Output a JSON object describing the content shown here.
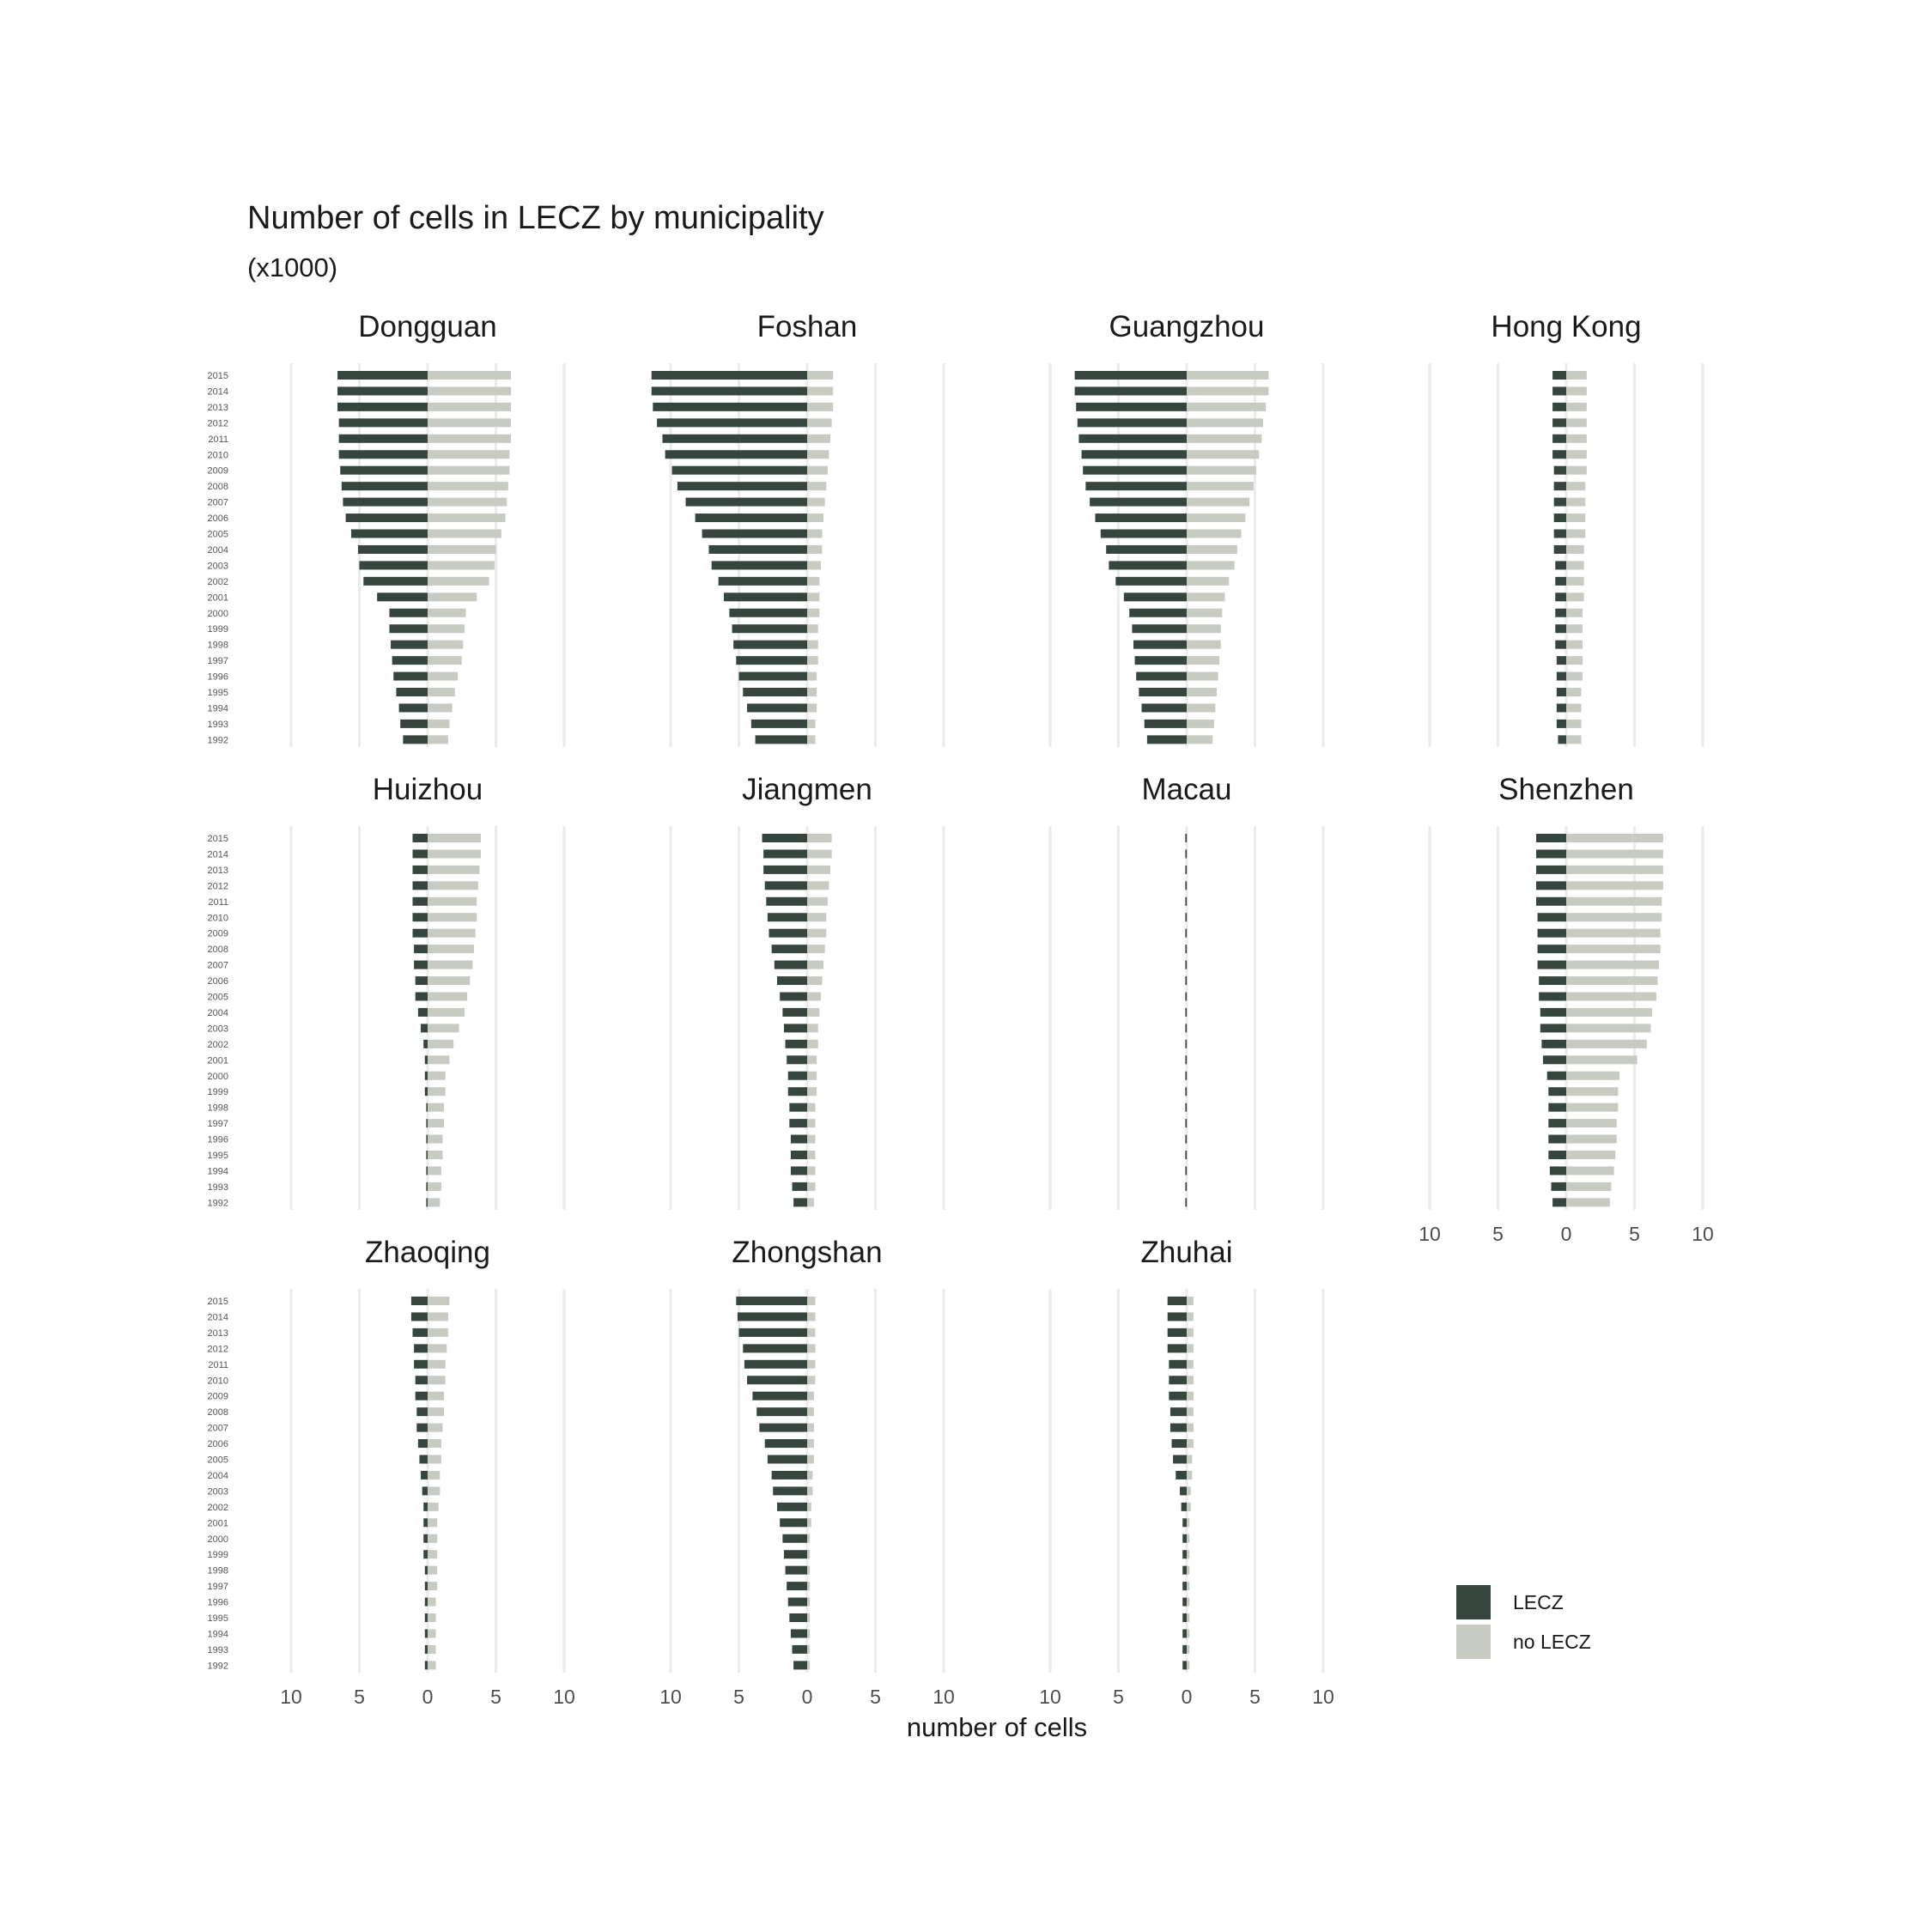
{
  "chart_data": {
    "type": "bar",
    "title": "Number of cells in LECZ by municipality",
    "subtitle": "(x1000)",
    "xlabel": "number of cells",
    "xlim": [
      -10,
      10
    ],
    "x_ticks": [
      -10,
      -5,
      0,
      5,
      10
    ],
    "x_tick_labels": [
      "10",
      "5",
      "0",
      "5",
      "10"
    ],
    "grid": "vertical",
    "legend_position": "bottom-right",
    "colors": {
      "LECZ": "#36463f",
      "no LECZ": "#c7cbc2",
      "grid": "#ebebeb"
    },
    "years": [
      2015,
      2014,
      2013,
      2012,
      2011,
      2010,
      2009,
      2008,
      2007,
      2006,
      2005,
      2004,
      2003,
      2002,
      2001,
      2000,
      1999,
      1998,
      1997,
      1996,
      1995,
      1994,
      1993,
      1992
    ],
    "series": [
      {
        "name": "LECZ"
      },
      {
        "name": "no LECZ"
      }
    ],
    "panels": [
      {
        "name": "Dongguan",
        "LECZ": [
          6.6,
          6.6,
          6.6,
          6.5,
          6.5,
          6.5,
          6.4,
          6.3,
          6.2,
          6.0,
          5.6,
          5.1,
          5.0,
          4.7,
          3.7,
          2.8,
          2.8,
          2.7,
          2.6,
          2.5,
          2.3,
          2.1,
          2.0,
          1.8
        ],
        "no_LECZ": [
          6.1,
          6.1,
          6.1,
          6.1,
          6.1,
          6.0,
          6.0,
          5.9,
          5.8,
          5.7,
          5.4,
          5.0,
          4.9,
          4.5,
          3.6,
          2.8,
          2.7,
          2.6,
          2.5,
          2.2,
          2.0,
          1.8,
          1.6,
          1.5
        ]
      },
      {
        "name": "Foshan",
        "LECZ": [
          11.4,
          11.4,
          11.3,
          11.0,
          10.6,
          10.4,
          9.9,
          9.5,
          8.9,
          8.2,
          7.7,
          7.2,
          7.0,
          6.5,
          6.1,
          5.7,
          5.5,
          5.4,
          5.2,
          5.0,
          4.7,
          4.4,
          4.1,
          3.8
        ],
        "no_LECZ": [
          1.9,
          1.9,
          1.9,
          1.8,
          1.7,
          1.6,
          1.5,
          1.4,
          1.3,
          1.2,
          1.1,
          1.1,
          1.0,
          0.9,
          0.9,
          0.9,
          0.8,
          0.8,
          0.8,
          0.7,
          0.7,
          0.7,
          0.6,
          0.6
        ]
      },
      {
        "name": "Guangzhou",
        "LECZ": [
          8.2,
          8.2,
          8.1,
          8.0,
          7.9,
          7.7,
          7.6,
          7.4,
          7.1,
          6.7,
          6.3,
          5.9,
          5.7,
          5.2,
          4.6,
          4.2,
          4.0,
          3.9,
          3.8,
          3.7,
          3.5,
          3.3,
          3.1,
          2.9
        ],
        "no_LECZ": [
          6.0,
          6.0,
          5.8,
          5.6,
          5.5,
          5.3,
          5.1,
          4.9,
          4.6,
          4.3,
          4.0,
          3.7,
          3.5,
          3.1,
          2.8,
          2.6,
          2.5,
          2.5,
          2.4,
          2.3,
          2.2,
          2.1,
          2.0,
          1.9
        ]
      },
      {
        "name": "Hong Kong",
        "LECZ": [
          1.0,
          1.0,
          1.0,
          1.0,
          1.0,
          1.0,
          0.9,
          0.9,
          0.9,
          0.9,
          0.9,
          0.9,
          0.8,
          0.8,
          0.8,
          0.8,
          0.8,
          0.8,
          0.7,
          0.7,
          0.7,
          0.7,
          0.7,
          0.6
        ],
        "no_LECZ": [
          1.5,
          1.5,
          1.5,
          1.5,
          1.5,
          1.5,
          1.5,
          1.4,
          1.4,
          1.4,
          1.4,
          1.3,
          1.3,
          1.3,
          1.3,
          1.2,
          1.2,
          1.2,
          1.2,
          1.2,
          1.1,
          1.1,
          1.1,
          1.1
        ]
      },
      {
        "name": "Huizhou",
        "LECZ": [
          1.1,
          1.1,
          1.1,
          1.1,
          1.1,
          1.1,
          1.1,
          1.0,
          1.0,
          0.9,
          0.9,
          0.7,
          0.5,
          0.3,
          0.2,
          0.2,
          0.2,
          0.1,
          0.1,
          0.1,
          0.1,
          0.1,
          0.1,
          0.1
        ],
        "no_LECZ": [
          3.9,
          3.9,
          3.8,
          3.7,
          3.6,
          3.6,
          3.5,
          3.4,
          3.3,
          3.1,
          2.9,
          2.7,
          2.3,
          1.9,
          1.6,
          1.3,
          1.3,
          1.2,
          1.2,
          1.1,
          1.1,
          1.0,
          1.0,
          0.9
        ]
      },
      {
        "name": "Jiangmen",
        "LECZ": [
          3.3,
          3.2,
          3.2,
          3.1,
          3.0,
          2.9,
          2.8,
          2.6,
          2.4,
          2.2,
          2.0,
          1.8,
          1.7,
          1.6,
          1.5,
          1.4,
          1.4,
          1.3,
          1.3,
          1.2,
          1.2,
          1.2,
          1.1,
          1.0
        ],
        "no_LECZ": [
          1.8,
          1.8,
          1.7,
          1.6,
          1.5,
          1.4,
          1.4,
          1.3,
          1.2,
          1.1,
          1.0,
          0.9,
          0.8,
          0.8,
          0.7,
          0.7,
          0.7,
          0.6,
          0.6,
          0.6,
          0.6,
          0.6,
          0.6,
          0.5
        ]
      },
      {
        "name": "Macau",
        "LECZ": [
          0.1,
          0.1,
          0.1,
          0.1,
          0.1,
          0.1,
          0.1,
          0.1,
          0.1,
          0.1,
          0.1,
          0.1,
          0.1,
          0.1,
          0.1,
          0.1,
          0.1,
          0.1,
          0.1,
          0.1,
          0.1,
          0.1,
          0.1,
          0.1
        ],
        "no_LECZ": [
          0.05,
          0.05,
          0.05,
          0.05,
          0.05,
          0.05,
          0.05,
          0.05,
          0.05,
          0.05,
          0.05,
          0.05,
          0.05,
          0.05,
          0.05,
          0.05,
          0.05,
          0.05,
          0.05,
          0.05,
          0.05,
          0.05,
          0.05,
          0.05
        ]
      },
      {
        "name": "Shenzhen",
        "LECZ": [
          2.2,
          2.2,
          2.2,
          2.2,
          2.2,
          2.1,
          2.1,
          2.1,
          2.1,
          2.0,
          2.0,
          1.9,
          1.9,
          1.8,
          1.7,
          1.4,
          1.3,
          1.3,
          1.3,
          1.3,
          1.3,
          1.2,
          1.1,
          1.0
        ],
        "no_LECZ": [
          7.1,
          7.1,
          7.1,
          7.1,
          7.0,
          7.0,
          6.9,
          6.9,
          6.8,
          6.7,
          6.6,
          6.3,
          6.2,
          5.9,
          5.2,
          3.9,
          3.8,
          3.8,
          3.7,
          3.7,
          3.6,
          3.5,
          3.3,
          3.2
        ]
      },
      {
        "name": "Zhaoqing",
        "LECZ": [
          1.2,
          1.2,
          1.1,
          1.0,
          1.0,
          0.9,
          0.9,
          0.8,
          0.8,
          0.7,
          0.6,
          0.5,
          0.4,
          0.3,
          0.3,
          0.3,
          0.3,
          0.2,
          0.2,
          0.2,
          0.2,
          0.2,
          0.2,
          0.2
        ],
        "no_LECZ": [
          1.6,
          1.5,
          1.5,
          1.4,
          1.3,
          1.3,
          1.2,
          1.2,
          1.1,
          1.0,
          1.0,
          0.9,
          0.9,
          0.8,
          0.7,
          0.7,
          0.7,
          0.7,
          0.7,
          0.6,
          0.6,
          0.6,
          0.6,
          0.6
        ]
      },
      {
        "name": "Zhongshan",
        "LECZ": [
          5.2,
          5.1,
          5.0,
          4.7,
          4.6,
          4.4,
          4.0,
          3.7,
          3.5,
          3.1,
          2.9,
          2.6,
          2.5,
          2.2,
          2.0,
          1.8,
          1.7,
          1.6,
          1.5,
          1.4,
          1.3,
          1.2,
          1.1,
          1.0
        ],
        "no_LECZ": [
          0.6,
          0.6,
          0.6,
          0.6,
          0.6,
          0.6,
          0.5,
          0.5,
          0.5,
          0.5,
          0.5,
          0.4,
          0.4,
          0.3,
          0.3,
          0.2,
          0.2,
          0.2,
          0.2,
          0.2,
          0.2,
          0.2,
          0.2,
          0.2
        ]
      },
      {
        "name": "Zhuhai",
        "LECZ": [
          1.4,
          1.4,
          1.4,
          1.4,
          1.3,
          1.3,
          1.3,
          1.2,
          1.2,
          1.1,
          1.0,
          0.8,
          0.5,
          0.4,
          0.3,
          0.3,
          0.3,
          0.3,
          0.3,
          0.3,
          0.3,
          0.3,
          0.3,
          0.3
        ],
        "no_LECZ": [
          0.5,
          0.5,
          0.5,
          0.5,
          0.5,
          0.5,
          0.5,
          0.5,
          0.5,
          0.5,
          0.4,
          0.4,
          0.3,
          0.3,
          0.2,
          0.2,
          0.2,
          0.2,
          0.2,
          0.2,
          0.2,
          0.2,
          0.2,
          0.2
        ]
      }
    ]
  }
}
